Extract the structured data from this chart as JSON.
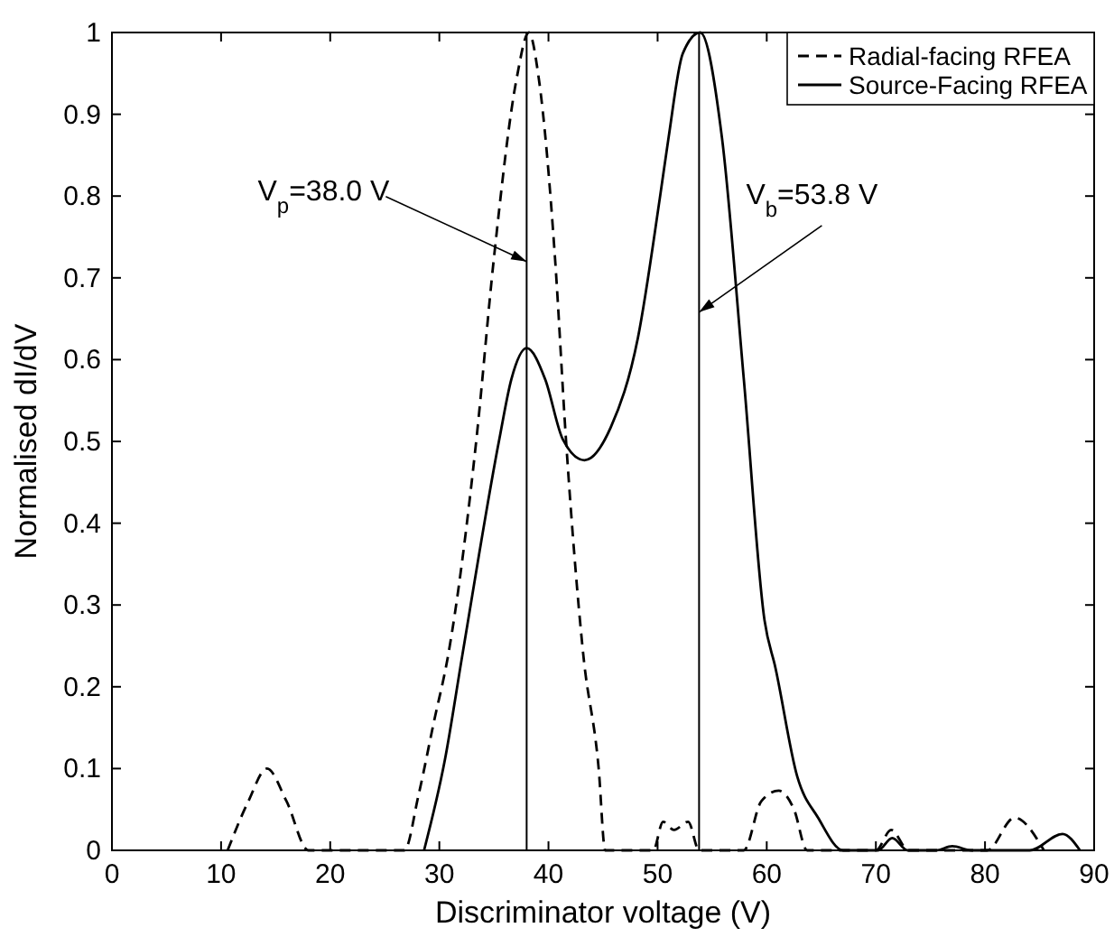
{
  "chart_data": {
    "type": "line",
    "xlabel": "Discriminator voltage (V)",
    "ylabel": "Normalised dI/dV",
    "xlim": [
      0,
      90
    ],
    "ylim": [
      0,
      1
    ],
    "xticks": [
      0,
      10,
      20,
      30,
      40,
      50,
      60,
      70,
      80,
      90
    ],
    "yticks": [
      0,
      0.1,
      0.2,
      0.3,
      0.4,
      0.5,
      0.6,
      0.7,
      0.8,
      0.9,
      1
    ],
    "legend": "top right",
    "grid": false,
    "marker": "none",
    "series": [
      {
        "name": "Radial-facing RFEA",
        "color": "#000000",
        "line_style": "dashed",
        "x": [
          10.6,
          12.5,
          14.2,
          16,
          18,
          26.8,
          28.1,
          29.5,
          30.8,
          33.4,
          35,
          37.1,
          38.2,
          39.1,
          40.6,
          41.6,
          43.2,
          44.6,
          45.2,
          49.6,
          50.5,
          51.5,
          52.8,
          53.8,
          57.9,
          59.5,
          61.1,
          62.5,
          63.7,
          70,
          71.4,
          73,
          80.2,
          82.7,
          85.4
        ],
        "values": [
          0,
          0.06,
          0.1,
          0.06,
          0,
          0,
          0.068,
          0.157,
          0.238,
          0.503,
          0.724,
          0.945,
          1,
          0.945,
          0.724,
          0.503,
          0.238,
          0.1,
          0,
          0,
          0.035,
          0.025,
          0.035,
          0,
          0,
          0.06,
          0.073,
          0.05,
          0,
          0,
          0.025,
          0,
          0,
          0.04,
          0
        ]
      },
      {
        "name": "Source-Facing RFEA",
        "color": "#000000",
        "line_style": "solid",
        "x": [
          28.6,
          30.5,
          32.1,
          35.5,
          36.6,
          38,
          39.7,
          41.3,
          43.3,
          45.7,
          48.2,
          50.2,
          51,
          52.3,
          53.9,
          55.9,
          57.9,
          59.8,
          60.8,
          62.8,
          64.7,
          67,
          70.2,
          71.5,
          72.9,
          75.5,
          77,
          78.8,
          84.1,
          87.1,
          88.7
        ],
        "values": [
          0,
          0.11,
          0.238,
          0.503,
          0.576,
          0.614,
          0.576,
          0.503,
          0.477,
          0.517,
          0.627,
          0.797,
          0.871,
          0.974,
          1,
          0.871,
          0.576,
          0.281,
          0.223,
          0.09,
          0.04,
          0,
          0,
          0.015,
          0,
          0,
          0.005,
          0,
          0,
          0.02,
          0
        ]
      }
    ],
    "ref_lines": [
      {
        "axis": "x",
        "value": 38.0
      },
      {
        "axis": "x",
        "value": 53.8
      }
    ],
    "annotations": [
      {
        "text": "V$_{p}$=38.0 V",
        "x": 38.0,
        "y": 0.72
      },
      {
        "text": "V$_{b}$=53.8 V",
        "x": 53.8,
        "y": 0.658
      }
    ]
  }
}
